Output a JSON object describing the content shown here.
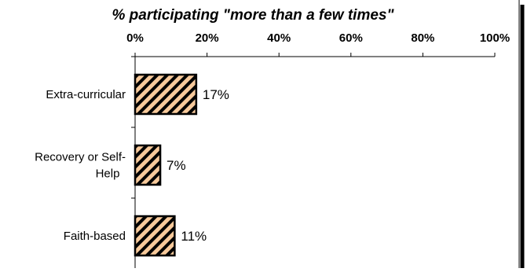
{
  "chart_data": {
    "type": "bar",
    "orientation": "horizontal",
    "title": "% participating \"more than a few times\"",
    "xlabel": "",
    "ylabel": "",
    "categories": [
      "Extra-curricular",
      "Recovery or Self-Help",
      "Faith-based"
    ],
    "category_lines": [
      [
        "Extra-curricular"
      ],
      [
        "Recovery or Self-",
        "Help"
      ],
      [
        "Faith-based"
      ]
    ],
    "values": [
      17,
      7,
      11
    ],
    "data_labels": [
      "17%",
      "7%",
      "11%"
    ],
    "xlim": [
      0,
      100
    ],
    "xticks": [
      0,
      20,
      40,
      60,
      80,
      100
    ],
    "xtick_labels": [
      "0%",
      "20%",
      "40%",
      "60%",
      "80%",
      "100%"
    ],
    "x_axis_position": "top",
    "grid": false,
    "legend": "none",
    "bar_fill": "#f6c99b",
    "bar_hatch_color": "#000000",
    "bar_outline": "#000000",
    "frame_shadow": "#000000"
  }
}
